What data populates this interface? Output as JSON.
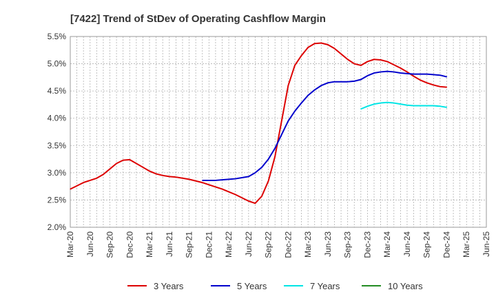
{
  "chart_data": {
    "type": "line",
    "title": "[7422]  Trend of StDev of Operating Cashflow Margin",
    "xlabel": "",
    "ylabel": "",
    "ylim": [
      2.0,
      5.5
    ],
    "yticks": [
      "2.0%",
      "2.5%",
      "3.0%",
      "3.5%",
      "4.0%",
      "4.5%",
      "5.0%",
      "5.5%"
    ],
    "yticks_values": [
      2.0,
      2.5,
      3.0,
      3.5,
      4.0,
      4.5,
      5.0,
      5.5
    ],
    "x_categories": [
      "Mar-20",
      "Jun-20",
      "Sep-20",
      "Dec-20",
      "Mar-21",
      "Jun-21",
      "Sep-21",
      "Dec-21",
      "Mar-22",
      "Jun-22",
      "Sep-22",
      "Dec-22",
      "Mar-23",
      "Jun-23",
      "Sep-23",
      "Dec-23",
      "Mar-24",
      "Jun-24",
      "Sep-24",
      "Dec-24",
      "Mar-25",
      "Jun-25"
    ],
    "grid": true,
    "legend_position": "bottom",
    "series": [
      {
        "name": "3 Years",
        "color": "#dd0000",
        "values": [
          {
            "x": "Mar-20",
            "y": 2.7
          },
          {
            "x": "Apr-20",
            "y": 2.76
          },
          {
            "x": "May-20",
            "y": 2.82
          },
          {
            "x": "Jun-20",
            "y": 2.86
          },
          {
            "x": "Jul-20",
            "y": 2.9
          },
          {
            "x": "Aug-20",
            "y": 2.97
          },
          {
            "x": "Sep-20",
            "y": 3.07
          },
          {
            "x": "Oct-20",
            "y": 3.17
          },
          {
            "x": "Nov-20",
            "y": 3.23
          },
          {
            "x": "Dec-20",
            "y": 3.24
          },
          {
            "x": "Jan-21",
            "y": 3.17
          },
          {
            "x": "Feb-21",
            "y": 3.1
          },
          {
            "x": "Mar-21",
            "y": 3.03
          },
          {
            "x": "Apr-21",
            "y": 2.98
          },
          {
            "x": "May-21",
            "y": 2.95
          },
          {
            "x": "Jun-21",
            "y": 2.93
          },
          {
            "x": "Jul-21",
            "y": 2.92
          },
          {
            "x": "Aug-21",
            "y": 2.9
          },
          {
            "x": "Sep-21",
            "y": 2.88
          },
          {
            "x": "Oct-21",
            "y": 2.85
          },
          {
            "x": "Nov-21",
            "y": 2.82
          },
          {
            "x": "Dec-21",
            "y": 2.78
          },
          {
            "x": "Jan-22",
            "y": 2.74
          },
          {
            "x": "Feb-22",
            "y": 2.7
          },
          {
            "x": "Mar-22",
            "y": 2.65
          },
          {
            "x": "Apr-22",
            "y": 2.6
          },
          {
            "x": "May-22",
            "y": 2.54
          },
          {
            "x": "Jun-22",
            "y": 2.48
          },
          {
            "x": "Jul-22",
            "y": 2.44
          },
          {
            "x": "Aug-22",
            "y": 2.57
          },
          {
            "x": "Sep-22",
            "y": 2.85
          },
          {
            "x": "Oct-22",
            "y": 3.3
          },
          {
            "x": "Nov-22",
            "y": 3.95
          },
          {
            "x": "Dec-22",
            "y": 4.6
          },
          {
            "x": "Jan-23",
            "y": 4.97
          },
          {
            "x": "Feb-23",
            "y": 5.15
          },
          {
            "x": "Mar-23",
            "y": 5.3
          },
          {
            "x": "Apr-23",
            "y": 5.37
          },
          {
            "x": "May-23",
            "y": 5.38
          },
          {
            "x": "Jun-23",
            "y": 5.35
          },
          {
            "x": "Jul-23",
            "y": 5.28
          },
          {
            "x": "Aug-23",
            "y": 5.18
          },
          {
            "x": "Sep-23",
            "y": 5.08
          },
          {
            "x": "Oct-23",
            "y": 5.0
          },
          {
            "x": "Nov-23",
            "y": 4.97
          },
          {
            "x": "Dec-23",
            "y": 5.04
          },
          {
            "x": "Jan-24",
            "y": 5.08
          },
          {
            "x": "Feb-24",
            "y": 5.07
          },
          {
            "x": "Mar-24",
            "y": 5.04
          },
          {
            "x": "Apr-24",
            "y": 4.98
          },
          {
            "x": "May-24",
            "y": 4.92
          },
          {
            "x": "Jun-24",
            "y": 4.85
          },
          {
            "x": "Jul-24",
            "y": 4.77
          },
          {
            "x": "Aug-24",
            "y": 4.7
          },
          {
            "x": "Sep-24",
            "y": 4.65
          },
          {
            "x": "Oct-24",
            "y": 4.61
          },
          {
            "x": "Nov-24",
            "y": 4.58
          },
          {
            "x": "Dec-24",
            "y": 4.57
          }
        ]
      },
      {
        "name": "5 Years",
        "color": "#0000cc",
        "values": [
          {
            "x": "Nov-21",
            "y": 2.86
          },
          {
            "x": "Dec-21",
            "y": 2.86
          },
          {
            "x": "Jan-22",
            "y": 2.86
          },
          {
            "x": "Feb-22",
            "y": 2.87
          },
          {
            "x": "Mar-22",
            "y": 2.88
          },
          {
            "x": "Apr-22",
            "y": 2.89
          },
          {
            "x": "May-22",
            "y": 2.91
          },
          {
            "x": "Jun-22",
            "y": 2.93
          },
          {
            "x": "Jul-22",
            "y": 3.0
          },
          {
            "x": "Aug-22",
            "y": 3.1
          },
          {
            "x": "Sep-22",
            "y": 3.25
          },
          {
            "x": "Oct-22",
            "y": 3.45
          },
          {
            "x": "Nov-22",
            "y": 3.7
          },
          {
            "x": "Dec-22",
            "y": 3.95
          },
          {
            "x": "Jan-23",
            "y": 4.13
          },
          {
            "x": "Feb-23",
            "y": 4.28
          },
          {
            "x": "Mar-23",
            "y": 4.42
          },
          {
            "x": "Apr-23",
            "y": 4.52
          },
          {
            "x": "May-23",
            "y": 4.6
          },
          {
            "x": "Jun-23",
            "y": 4.65
          },
          {
            "x": "Jul-23",
            "y": 4.67
          },
          {
            "x": "Aug-23",
            "y": 4.67
          },
          {
            "x": "Sep-23",
            "y": 4.67
          },
          {
            "x": "Oct-23",
            "y": 4.68
          },
          {
            "x": "Nov-23",
            "y": 4.71
          },
          {
            "x": "Dec-23",
            "y": 4.78
          },
          {
            "x": "Jan-24",
            "y": 4.83
          },
          {
            "x": "Feb-24",
            "y": 4.85
          },
          {
            "x": "Mar-24",
            "y": 4.86
          },
          {
            "x": "Apr-24",
            "y": 4.85
          },
          {
            "x": "May-24",
            "y": 4.83
          },
          {
            "x": "Jun-24",
            "y": 4.82
          },
          {
            "x": "Jul-24",
            "y": 4.81
          },
          {
            "x": "Aug-24",
            "y": 4.81
          },
          {
            "x": "Sep-24",
            "y": 4.81
          },
          {
            "x": "Oct-24",
            "y": 4.8
          },
          {
            "x": "Nov-24",
            "y": 4.79
          },
          {
            "x": "Dec-24",
            "y": 4.76
          }
        ]
      },
      {
        "name": "7 Years",
        "color": "#00e5e5",
        "values": [
          {
            "x": "Nov-23",
            "y": 4.17
          },
          {
            "x": "Dec-23",
            "y": 4.22
          },
          {
            "x": "Jan-24",
            "y": 4.26
          },
          {
            "x": "Feb-24",
            "y": 4.28
          },
          {
            "x": "Mar-24",
            "y": 4.29
          },
          {
            "x": "Apr-24",
            "y": 4.28
          },
          {
            "x": "May-24",
            "y": 4.26
          },
          {
            "x": "Jun-24",
            "y": 4.24
          },
          {
            "x": "Jul-24",
            "y": 4.23
          },
          {
            "x": "Aug-24",
            "y": 4.23
          },
          {
            "x": "Sep-24",
            "y": 4.23
          },
          {
            "x": "Oct-24",
            "y": 4.23
          },
          {
            "x": "Nov-24",
            "y": 4.22
          },
          {
            "x": "Dec-24",
            "y": 4.2
          }
        ]
      },
      {
        "name": "10 Years",
        "color": "#228b22",
        "values": []
      }
    ]
  }
}
